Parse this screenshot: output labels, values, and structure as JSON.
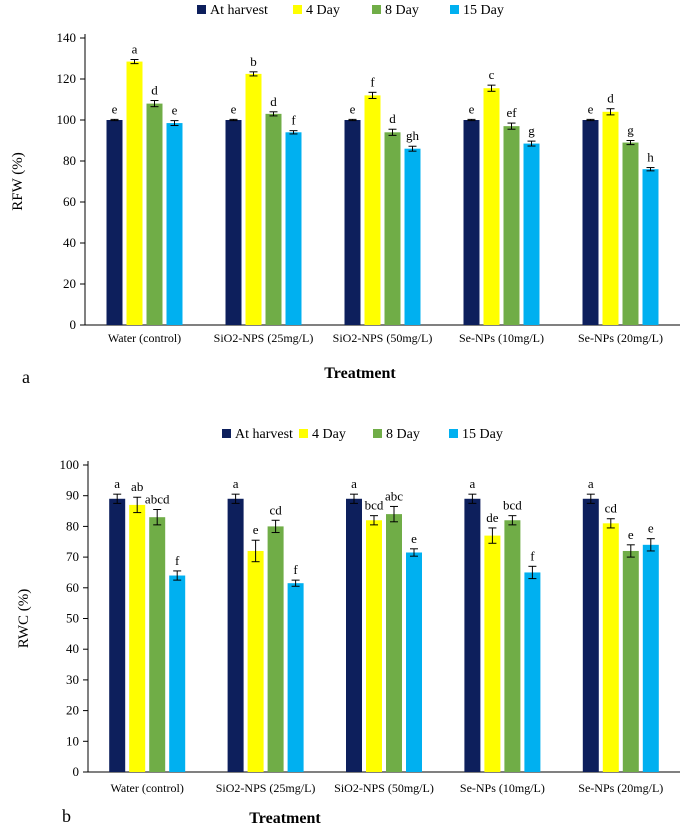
{
  "chart_data": [
    {
      "type": "bar",
      "panel_label": "a",
      "xlabel": "Treatment",
      "ylabel": "RFW (%)",
      "ylim": [
        0,
        140
      ],
      "yticks": [
        0,
        20,
        40,
        60,
        80,
        100,
        120,
        140
      ],
      "categories": [
        "Water (control)",
        "SiO2-NPS (25mg/L)",
        "SiO2-NPS (50mg/L)",
        "Se-NPs (10mg/L)",
        "Se-NPs (20mg/L)"
      ],
      "legend": [
        "At harvest",
        "4 Day",
        "8 Day",
        "15 Day"
      ],
      "legend_position": "top",
      "series": [
        {
          "name": "At harvest",
          "color": "#0d1f5c",
          "values": [
            100,
            100,
            100,
            100,
            100
          ],
          "errors": [
            0.3,
            0.3,
            0.3,
            0.3,
            0.3
          ],
          "labels": [
            "e",
            "e",
            "e",
            "e",
            "e"
          ]
        },
        {
          "name": "4 Day",
          "color": "#ffff00",
          "values": [
            128.5,
            122.5,
            112,
            115.5,
            104
          ],
          "errors": [
            1.0,
            1.0,
            1.5,
            1.5,
            1.5
          ],
          "labels": [
            "a",
            "b",
            "f",
            "c",
            "d"
          ]
        },
        {
          "name": "8 Day",
          "color": "#70ad47",
          "values": [
            108,
            103,
            94,
            97,
            89
          ],
          "errors": [
            1.5,
            1.0,
            1.5,
            1.5,
            1.0
          ],
          "labels": [
            "d",
            "d",
            "d",
            "ef",
            "g"
          ]
        },
        {
          "name": "15 Day",
          "color": "#00b0f0",
          "values": [
            98.5,
            94,
            86,
            88.5,
            76
          ],
          "errors": [
            1.2,
            0.8,
            1.2,
            1.2,
            0.8
          ],
          "labels": [
            "e",
            "f",
            "gh",
            "g",
            "h"
          ]
        }
      ]
    },
    {
      "type": "bar",
      "panel_label": "b",
      "xlabel": "Treatment",
      "ylabel": "RWC (%)",
      "ylim": [
        0,
        100
      ],
      "yticks": [
        0,
        10,
        20,
        30,
        40,
        50,
        60,
        70,
        80,
        90,
        100
      ],
      "categories": [
        "Water (control)",
        "SiO2-NPS (25mg/L)",
        "SiO2-NPS (50mg/L)",
        "Se-NPs (10mg/L)",
        "Se-NPs (20mg/L)"
      ],
      "legend": [
        "At harvest",
        "4 Day",
        "8 Day",
        "15 Day"
      ],
      "legend_position": "top",
      "series": [
        {
          "name": "At harvest",
          "color": "#0d1f5c",
          "values": [
            89,
            89,
            89,
            89,
            89
          ],
          "errors": [
            1.5,
            1.5,
            1.5,
            1.5,
            1.5
          ],
          "labels": [
            "a",
            "a",
            "a",
            "a",
            "a"
          ]
        },
        {
          "name": "4 Day",
          "color": "#ffff00",
          "values": [
            87,
            72,
            82,
            77,
            81
          ],
          "errors": [
            2.5,
            3.5,
            1.5,
            2.5,
            1.5
          ],
          "labels": [
            "ab",
            "e",
            "bcd",
            "de",
            "cd"
          ]
        },
        {
          "name": "8 Day",
          "color": "#70ad47",
          "values": [
            83,
            80,
            84,
            82,
            72
          ],
          "errors": [
            2.5,
            2.0,
            2.5,
            1.5,
            2.0
          ],
          "labels": [
            "abcd",
            "cd",
            "abc",
            "bcd",
            "e"
          ]
        },
        {
          "name": "15 Day",
          "color": "#00b0f0",
          "values": [
            64,
            61.5,
            71.5,
            65,
            74
          ],
          "errors": [
            1.5,
            1.0,
            1.2,
            2.0,
            2.0
          ],
          "labels": [
            "f",
            "f",
            "e",
            "f",
            "e"
          ]
        }
      ]
    }
  ]
}
